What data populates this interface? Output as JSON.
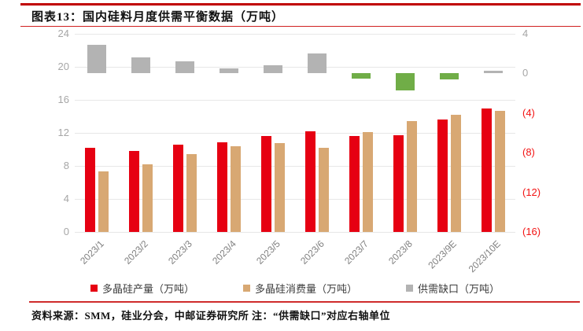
{
  "header": {
    "title": "图表13：国内硅料月度供需平衡数据（万吨）"
  },
  "footer": {
    "source": "资料来源：SMM，硅业分会，中邮证券研究所",
    "note": "注：“供需缺口”对应右轴单位"
  },
  "colors": {
    "accent_rule": "#c00000",
    "production_red": "#e60012",
    "consumption_tan": "#d8a873",
    "gap_gray": "#b3b3b3",
    "gap_negative_green": "#70ad47",
    "grid": "#e7e7e7",
    "axis_text": "#a6a6a6",
    "x_axis_text": "#7f7f7f",
    "negative_tick_red": "#f31212"
  },
  "chart_data": {
    "type": "bar",
    "title": "国内硅料月度供需平衡数据（万吨）",
    "categories": [
      "2023/1",
      "2023/2",
      "2023/3",
      "2023/4",
      "2023/5",
      "2023/6",
      "2023/7",
      "2023/8",
      "2023/9E",
      "2023/10E"
    ],
    "series": [
      {
        "name": "多晶硅产量（万吨）",
        "axis": "left",
        "color": "#e60012",
        "values": [
          10.2,
          9.8,
          10.6,
          10.9,
          11.6,
          12.2,
          11.6,
          11.7,
          13.6,
          15.0
        ]
      },
      {
        "name": "多晶硅消费量（万吨）",
        "axis": "left",
        "color": "#d8a873",
        "values": [
          7.3,
          8.2,
          9.4,
          10.4,
          10.8,
          10.2,
          12.1,
          13.4,
          14.2,
          14.7
        ]
      },
      {
        "name": "供需缺口（万吨）",
        "axis": "right",
        "color": "#b3b3b3",
        "negative_color": "#70ad47",
        "values": [
          2.9,
          1.6,
          1.2,
          0.5,
          0.8,
          2.0,
          -0.5,
          -1.7,
          -0.6,
          0.3
        ]
      }
    ],
    "left_axis": {
      "min": 0,
      "max": 24,
      "ticks": [
        0,
        4,
        8,
        12,
        16,
        20,
        24
      ]
    },
    "right_axis": {
      "min": -16,
      "max": 4,
      "ticks": [
        4,
        0,
        -4,
        -8,
        -12,
        -16
      ],
      "negative_format": "parentheses"
    },
    "grid": true,
    "legend_position": "bottom",
    "xlabel": "",
    "ylabel_left": "万吨",
    "ylabel_right": "万吨"
  }
}
